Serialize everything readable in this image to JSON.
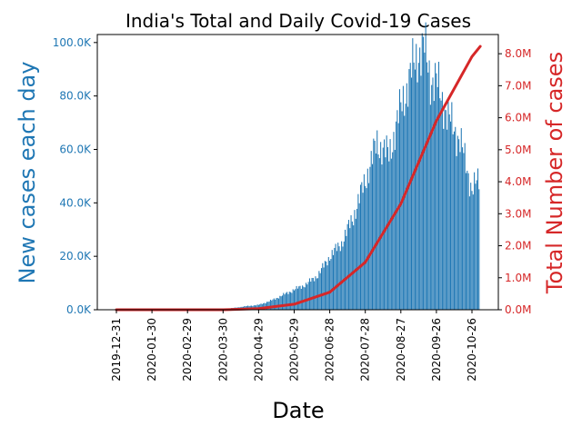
{
  "chart_data": {
    "type": "bar",
    "title": "India's Total and Daily Covid-19 Cases",
    "xlabel": "Date",
    "ylabel": "New cases each day",
    "y2label": "Total Number of cases",
    "x_ticks": [
      "2019-12-31",
      "2020-01-30",
      "2020-02-29",
      "2020-03-30",
      "2020-04-29",
      "2020-05-29",
      "2020-06-28",
      "2020-07-28",
      "2020-08-27",
      "2020-09-26",
      "2020-10-26"
    ],
    "ylim": [
      0,
      103000
    ],
    "y_ticks": [
      0,
      20000,
      40000,
      60000,
      80000,
      100000
    ],
    "y_tick_labels": [
      "0.0K",
      "20.0K",
      "40.0K",
      "60.0K",
      "80.0K",
      "100.0K"
    ],
    "y2lim": [
      0,
      8600000
    ],
    "y2_ticks": [
      0,
      1000000,
      2000000,
      3000000,
      4000000,
      5000000,
      6000000,
      7000000,
      8000000
    ],
    "y2_tick_labels": [
      "0.0M",
      "1.0M",
      "2.0M",
      "3.0M",
      "4.0M",
      "5.0M",
      "6.0M",
      "7.0M",
      "8.0M"
    ],
    "series": [
      {
        "name": "New cases each day",
        "kind": "bar",
        "color": "#1f77b4",
        "points": [
          [
            "2019-12-31",
            0
          ],
          [
            "2020-01-30",
            1
          ],
          [
            "2020-02-29",
            0
          ],
          [
            "2020-03-30",
            227
          ],
          [
            "2020-04-10",
            800
          ],
          [
            "2020-04-20",
            1400
          ],
          [
            "2020-04-29",
            1800
          ],
          [
            "2020-05-10",
            3500
          ],
          [
            "2020-05-20",
            5600
          ],
          [
            "2020-05-29",
            7500
          ],
          [
            "2020-06-08",
            9500
          ],
          [
            "2020-06-18",
            12900
          ],
          [
            "2020-06-28",
            19900
          ],
          [
            "2020-07-08",
            24900
          ],
          [
            "2020-07-18",
            34900
          ],
          [
            "2020-07-28",
            48500
          ],
          [
            "2020-08-07",
            62500
          ],
          [
            "2020-08-17",
            57900
          ],
          [
            "2020-08-27",
            75700
          ],
          [
            "2020-09-06",
            90600
          ],
          [
            "2020-09-11",
            96500
          ],
          [
            "2020-09-16",
            97900
          ],
          [
            "2020-09-21",
            86900
          ],
          [
            "2020-09-26",
            85300
          ],
          [
            "2020-10-06",
            72000
          ],
          [
            "2020-10-16",
            63400
          ],
          [
            "2020-10-26",
            45100
          ],
          [
            "2020-11-01",
            48500
          ]
        ]
      },
      {
        "name": "Total Number of cases",
        "kind": "line",
        "color": "#d62728",
        "points": [
          [
            "2019-12-31",
            0
          ],
          [
            "2020-03-30",
            1250
          ],
          [
            "2020-04-29",
            33000
          ],
          [
            "2020-05-29",
            173800
          ],
          [
            "2020-06-28",
            549200
          ],
          [
            "2020-07-28",
            1483200
          ],
          [
            "2020-08-27",
            3310200
          ],
          [
            "2020-09-26",
            5903900
          ],
          [
            "2020-10-26",
            7909900
          ],
          [
            "2020-11-02",
            8229300
          ]
        ]
      }
    ],
    "grid": false,
    "legend": "none"
  }
}
